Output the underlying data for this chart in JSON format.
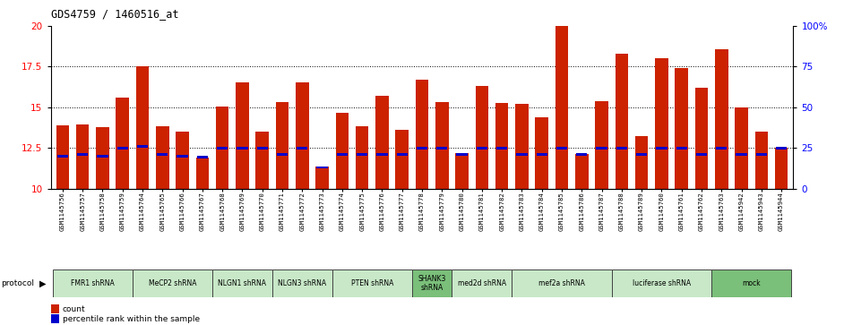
{
  "title": "GDS4759 / 1460516_at",
  "samples": [
    "GSM1145756",
    "GSM1145757",
    "GSM1145758",
    "GSM1145759",
    "GSM1145764",
    "GSM1145765",
    "GSM1145766",
    "GSM1145767",
    "GSM1145768",
    "GSM1145769",
    "GSM1145770",
    "GSM1145771",
    "GSM1145772",
    "GSM1145773",
    "GSM1145774",
    "GSM1145775",
    "GSM1145776",
    "GSM1145777",
    "GSM1145778",
    "GSM1145779",
    "GSM1145780",
    "GSM1145781",
    "GSM1145782",
    "GSM1145783",
    "GSM1145784",
    "GSM1145785",
    "GSM1145786",
    "GSM1145787",
    "GSM1145788",
    "GSM1145789",
    "GSM1145760",
    "GSM1145761",
    "GSM1145762",
    "GSM1145763",
    "GSM1145942",
    "GSM1145943",
    "GSM1145944"
  ],
  "counts": [
    13.9,
    13.95,
    13.8,
    15.6,
    17.5,
    13.85,
    13.5,
    11.9,
    15.05,
    16.55,
    13.5,
    15.3,
    16.55,
    11.35,
    14.65,
    13.85,
    15.7,
    13.6,
    16.7,
    15.3,
    12.2,
    16.3,
    15.25,
    15.2,
    14.4,
    20.0,
    12.1,
    15.35,
    18.3,
    13.2,
    18.0,
    17.4,
    16.2,
    18.55,
    15.0,
    13.5,
    12.5
  ],
  "percentiles": [
    12.0,
    12.1,
    12.0,
    12.5,
    12.6,
    12.1,
    12.0,
    11.95,
    12.5,
    12.5,
    12.5,
    12.1,
    12.5,
    11.3,
    12.1,
    12.1,
    12.1,
    12.1,
    12.5,
    12.5,
    12.1,
    12.5,
    12.5,
    12.1,
    12.1,
    12.5,
    12.1,
    12.5,
    12.5,
    12.1,
    12.5,
    12.5,
    12.1,
    12.5,
    12.1,
    12.1,
    12.5
  ],
  "protocols": [
    {
      "label": "FMR1 shRNA",
      "start": 0,
      "end": 4,
      "color": "#c8e8c8"
    },
    {
      "label": "MeCP2 shRNA",
      "start": 4,
      "end": 8,
      "color": "#c8e8c8"
    },
    {
      "label": "NLGN1 shRNA",
      "start": 8,
      "end": 11,
      "color": "#c8e8c8"
    },
    {
      "label": "NLGN3 shRNA",
      "start": 11,
      "end": 14,
      "color": "#c8e8c8"
    },
    {
      "label": "PTEN shRNA",
      "start": 14,
      "end": 18,
      "color": "#c8e8c8"
    },
    {
      "label": "SHANK3\nshRNA",
      "start": 18,
      "end": 20,
      "color": "#7abf7a"
    },
    {
      "label": "med2d shRNA",
      "start": 20,
      "end": 23,
      "color": "#c8e8c8"
    },
    {
      "label": "mef2a shRNA",
      "start": 23,
      "end": 28,
      "color": "#c8e8c8"
    },
    {
      "label": "luciferase shRNA",
      "start": 28,
      "end": 33,
      "color": "#c8e8c8"
    },
    {
      "label": "mock",
      "start": 33,
      "end": 37,
      "color": "#7abf7a"
    }
  ],
  "bar_color": "#cc2200",
  "blue_color": "#0000cc",
  "ylim_left": [
    10,
    20
  ],
  "ylim_right": [
    0,
    100
  ],
  "yticks_left": [
    10,
    12.5,
    15,
    17.5,
    20
  ],
  "yticks_right": [
    0,
    25,
    50,
    75,
    100
  ],
  "ytick_labels_left": [
    "10",
    "12.5",
    "15",
    "17.5",
    "20"
  ],
  "ytick_labels_right": [
    "0",
    "25",
    "50",
    "75",
    "100%"
  ]
}
